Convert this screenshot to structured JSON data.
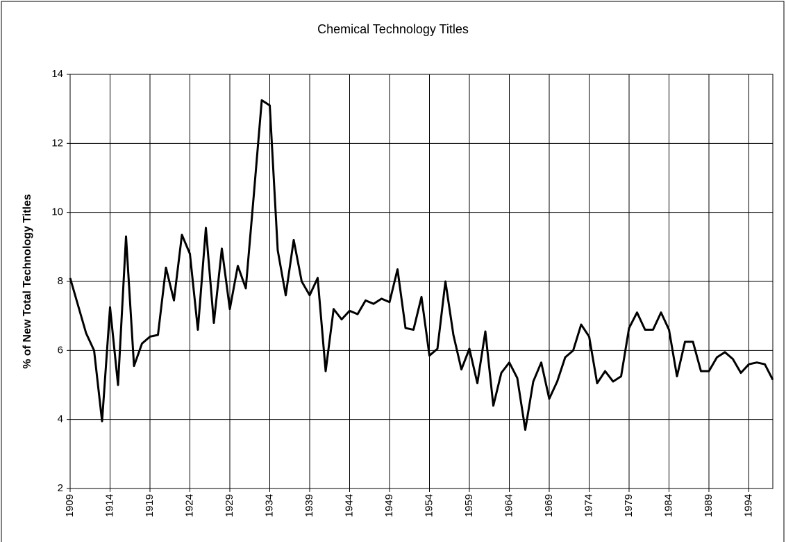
{
  "chart_data": {
    "type": "line",
    "title": "Chemical Technology Titles",
    "ylabel": "% of New Total Technology Titles",
    "x": [
      1909,
      1910,
      1911,
      1912,
      1913,
      1914,
      1915,
      1916,
      1917,
      1918,
      1919,
      1920,
      1921,
      1922,
      1923,
      1924,
      1925,
      1926,
      1927,
      1928,
      1929,
      1930,
      1931,
      1932,
      1933,
      1934,
      1935,
      1936,
      1937,
      1938,
      1939,
      1940,
      1941,
      1942,
      1943,
      1944,
      1945,
      1946,
      1947,
      1948,
      1949,
      1950,
      1951,
      1952,
      1953,
      1954,
      1955,
      1956,
      1957,
      1958,
      1959,
      1960,
      1961,
      1962,
      1963,
      1964,
      1965,
      1966,
      1967,
      1968,
      1969,
      1970,
      1971,
      1972,
      1973,
      1974,
      1975,
      1976,
      1977,
      1978,
      1979,
      1980,
      1981,
      1982,
      1983,
      1984,
      1985,
      1986,
      1987,
      1988,
      1989,
      1990,
      1991,
      1992,
      1993,
      1994,
      1995,
      1996,
      1997
    ],
    "values": [
      8.1,
      7.3,
      6.5,
      6.0,
      3.95,
      7.25,
      5.0,
      9.3,
      5.55,
      6.2,
      6.4,
      6.45,
      8.4,
      7.45,
      9.35,
      8.8,
      6.6,
      9.55,
      6.8,
      8.95,
      7.2,
      8.45,
      7.8,
      10.5,
      13.25,
      13.1,
      8.9,
      7.6,
      9.2,
      8.0,
      7.6,
      8.1,
      5.4,
      7.2,
      6.9,
      7.15,
      7.05,
      7.45,
      7.35,
      7.5,
      7.4,
      8.35,
      6.65,
      6.6,
      7.55,
      5.85,
      6.05,
      8.0,
      6.45,
      5.45,
      6.05,
      5.05,
      6.55,
      4.4,
      5.35,
      5.65,
      5.2,
      3.7,
      5.1,
      5.65,
      4.6,
      5.1,
      5.8,
      6.0,
      6.75,
      6.4,
      5.05,
      5.4,
      5.1,
      5.25,
      6.65,
      7.1,
      6.6,
      6.6,
      7.1,
      6.6,
      5.25,
      6.25,
      6.25,
      5.4,
      5.4,
      5.8,
      5.95,
      5.75,
      5.35,
      5.6,
      5.65,
      5.6,
      5.15
    ],
    "color": "#000000",
    "xlim": [
      1909,
      1997
    ],
    "xticks": [
      1909,
      1914,
      1919,
      1924,
      1929,
      1934,
      1939,
      1944,
      1949,
      1954,
      1959,
      1964,
      1969,
      1974,
      1979,
      1984,
      1989,
      1994
    ],
    "ylim": [
      2,
      14
    ],
    "yticks": [
      2,
      4,
      6,
      8,
      10,
      12,
      14
    ],
    "grid": true
  }
}
